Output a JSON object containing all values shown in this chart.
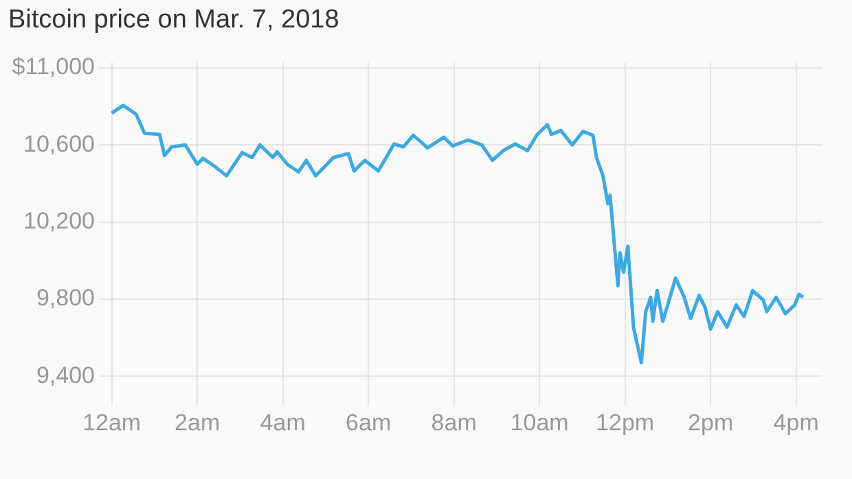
{
  "chart_data": {
    "type": "line",
    "title": "Bitcoin price on Mar. 7, 2018",
    "x": [
      "2018-03-07T00:00",
      "2018-03-07T00:16",
      "2018-03-07T00:34",
      "2018-03-07T00:46",
      "2018-03-07T01:07",
      "2018-03-07T01:14",
      "2018-03-07T01:24",
      "2018-03-07T01:43",
      "2018-03-07T02:00",
      "2018-03-07T02:08",
      "2018-03-07T02:24",
      "2018-03-07T02:41",
      "2018-03-07T03:03",
      "2018-03-07T03:17",
      "2018-03-07T03:28",
      "2018-03-07T03:46",
      "2018-03-07T03:52",
      "2018-03-07T04:06",
      "2018-03-07T04:22",
      "2018-03-07T04:33",
      "2018-03-07T04:46",
      "2018-03-07T05:11",
      "2018-03-07T05:32",
      "2018-03-07T05:40",
      "2018-03-07T05:55",
      "2018-03-07T06:14",
      "2018-03-07T06:36",
      "2018-03-07T06:49",
      "2018-03-07T07:03",
      "2018-03-07T07:23",
      "2018-03-07T07:46",
      "2018-03-07T07:58",
      "2018-03-07T08:20",
      "2018-03-07T08:39",
      "2018-03-07T08:54",
      "2018-03-07T09:09",
      "2018-03-07T09:26",
      "2018-03-07T09:43",
      "2018-03-07T09:57",
      "2018-03-07T10:11",
      "2018-03-07T10:17",
      "2018-03-07T10:30",
      "2018-03-07T10:46",
      "2018-03-07T11:01",
      "2018-03-07T11:15",
      "2018-03-07T11:20",
      "2018-03-07T11:29",
      "2018-03-07T11:36",
      "2018-03-07T11:39",
      "2018-03-07T11:50",
      "2018-03-07T11:53",
      "2018-03-07T11:58",
      "2018-03-07T12:04",
      "2018-03-07T12:12",
      "2018-03-07T12:23",
      "2018-03-07T12:29",
      "2018-03-07T12:36",
      "2018-03-07T12:39",
      "2018-03-07T12:45",
      "2018-03-07T12:53",
      "2018-03-07T13:11",
      "2018-03-07T13:23",
      "2018-03-07T13:32",
      "2018-03-07T13:44",
      "2018-03-07T13:52",
      "2018-03-07T14:00",
      "2018-03-07T14:10",
      "2018-03-07T14:23",
      "2018-03-07T14:36",
      "2018-03-07T14:47",
      "2018-03-07T14:59",
      "2018-03-07T15:14",
      "2018-03-07T15:19",
      "2018-03-07T15:32",
      "2018-03-07T15:45",
      "2018-03-07T15:58",
      "2018-03-07T16:04",
      "2018-03-07T16:10"
    ],
    "series": [
      {
        "color": "#3ea9e1",
        "values": [
          10765,
          10805,
          10760,
          10660,
          10655,
          10545,
          10590,
          10600,
          10500,
          10530,
          10490,
          10440,
          10560,
          10535,
          10600,
          10535,
          10565,
          10500,
          10460,
          10520,
          10440,
          10535,
          10555,
          10465,
          10520,
          10465,
          10605,
          10590,
          10650,
          10585,
          10640,
          10595,
          10625,
          10600,
          10520,
          10570,
          10605,
          10570,
          10655,
          10705,
          10655,
          10675,
          10600,
          10670,
          10650,
          10535,
          10440,
          10295,
          10340,
          9870,
          10040,
          9940,
          10075,
          9650,
          9470,
          9735,
          9810,
          9685,
          9845,
          9685,
          9910,
          9810,
          9700,
          9820,
          9760,
          9645,
          9735,
          9655,
          9770,
          9710,
          9845,
          9795,
          9735,
          9810,
          9725,
          9770,
          9825,
          9810
        ]
      }
    ],
    "xlim": [
      "2018-03-06T23:42",
      "2018-03-07T16:36"
    ],
    "xticks": [
      {
        "value": "2018-03-07T00:00",
        "label": "12am"
      },
      {
        "value": "2018-03-07T02:00",
        "label": "2am"
      },
      {
        "value": "2018-03-07T04:00",
        "label": "4am"
      },
      {
        "value": "2018-03-07T06:00",
        "label": "6am"
      },
      {
        "value": "2018-03-07T08:00",
        "label": "8am"
      },
      {
        "value": "2018-03-07T10:00",
        "label": "10am"
      },
      {
        "value": "2018-03-07T12:00",
        "label": "12pm"
      },
      {
        "value": "2018-03-07T14:00",
        "label": "2pm"
      },
      {
        "value": "2018-03-07T16:00",
        "label": "4pm"
      }
    ],
    "ylim": [
      9290,
      11030
    ],
    "yticks": [
      {
        "value": 9400,
        "label": "9,400"
      },
      {
        "value": 9800,
        "label": "9,800"
      },
      {
        "value": 10200,
        "label": "10,200"
      },
      {
        "value": 10600,
        "label": "10,600"
      },
      {
        "value": 11000,
        "label": "$11,000"
      }
    ],
    "grid": true,
    "legend": false,
    "marker": "none",
    "line_style": "solid"
  }
}
